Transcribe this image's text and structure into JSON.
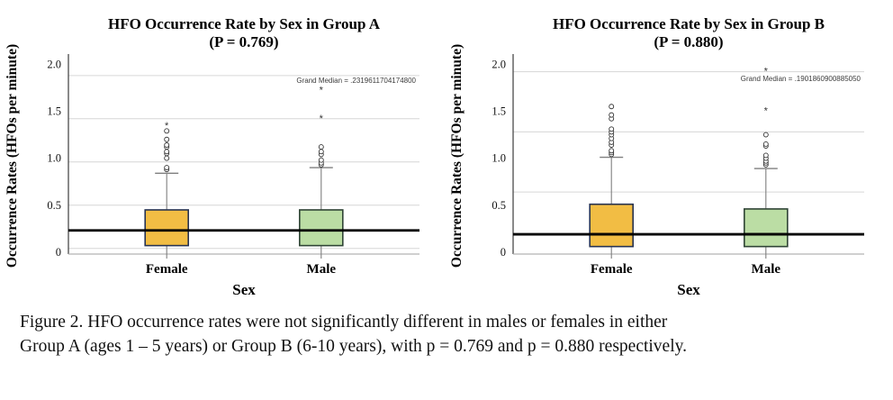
{
  "figure": {
    "caption_line1": "Figure 2. HFO occurrence rates were not significantly different in males or females in either",
    "caption_line2": "Group A (ages 1 – 5 years) or Group B (6-10 years), with p = 0.769 and p = 0.880 respectively."
  },
  "colors": {
    "female_box_fill": "#F2BD44",
    "male_box_fill": "#BBDDA4",
    "female_box_border": "#273352",
    "male_box_border": "#2f4435",
    "gridline": "#d6d6d6",
    "y_axis": "#4a4a4a",
    "x_axis": "#b3b3b3",
    "whisker": "#7f7f7f",
    "outlier": "#333333",
    "grand_median_line": "#000000",
    "annotation_text": "#3d3d3d"
  },
  "chart_data": [
    {
      "type": "box",
      "title": "HFO Occurrence Rate by Sex in Group A",
      "subtitle": "(P = 0.769)",
      "xlabel": "Sex",
      "ylabel": "Occurrence Rates (HFOs per minute)",
      "ylim": [
        -0.02,
        2.07
      ],
      "yticks": [
        0,
        0.5,
        1.0,
        1.5,
        2.0
      ],
      "ytick_labels": [
        "0",
        "0.5",
        "1.0",
        "1.5",
        "2.0"
      ],
      "gridlines": [
        0.04,
        0.5,
        0.96,
        1.42,
        1.88
      ],
      "grand_median": 0.23196117041748,
      "grand_median_label": "Grand Median = .2319611704174800",
      "grand_median_label_y": 1.8,
      "categories": [
        "Female",
        "Male"
      ],
      "boxes": [
        {
          "category": "Female",
          "fill": "#F2BD44",
          "border": "#273352",
          "q1": 0.07,
          "median": 0.23,
          "q3": 0.45,
          "whisker_low": 0.0,
          "whisker_high": 0.84,
          "outliers": [
            0.88,
            0.9,
            1.0,
            1.05,
            1.07,
            1.12,
            1.14,
            1.2,
            1.29
          ],
          "extremes": [
            1.35
          ]
        },
        {
          "category": "Male",
          "fill": "#BBDDA4",
          "border": "#2f4435",
          "q1": 0.07,
          "median": 0.23,
          "q3": 0.45,
          "whisker_low": 0.0,
          "whisker_high": 0.9,
          "outliers": [
            0.93,
            0.95,
            0.98,
            1.04,
            1.07,
            1.12
          ],
          "extremes": [
            1.43,
            1.73
          ]
        }
      ]
    },
    {
      "type": "box",
      "title": "HFO Occurrence Rate by Sex in Group B",
      "subtitle": "(P = 0.880)",
      "xlabel": "Sex",
      "ylabel": "Occurrence Rates (HFOs per minute)",
      "ylim": [
        -0.02,
        2.07
      ],
      "yticks": [
        0,
        0.5,
        1.0,
        1.5,
        2.0
      ],
      "ytick_labels": [
        "0",
        "0.5",
        "1.0",
        "1.5",
        "2.0"
      ],
      "gridlines": [
        0.64,
        1.28,
        1.92
      ],
      "grand_median": 0.190186090088505,
      "grand_median_label": "Grand Median = .1901860900885050",
      "grand_median_label_y": 1.82,
      "categories": [
        "Female",
        "Male"
      ],
      "boxes": [
        {
          "category": "Female",
          "fill": "#F2BD44",
          "border": "#273352",
          "q1": 0.06,
          "median": 0.2,
          "q3": 0.51,
          "whisker_low": 0.0,
          "whisker_high": 1.01,
          "outliers": [
            1.04,
            1.06,
            1.08,
            1.14,
            1.17,
            1.21,
            1.25,
            1.28,
            1.31,
            1.42,
            1.46,
            1.55
          ],
          "extremes": []
        },
        {
          "category": "Male",
          "fill": "#BBDDA4",
          "border": "#2f4435",
          "q1": 0.06,
          "median": 0.2,
          "q3": 0.46,
          "whisker_low": 0.0,
          "whisker_high": 0.89,
          "outliers": [
            0.93,
            0.95,
            0.97,
            1.0,
            1.03,
            1.13,
            1.15,
            1.25
          ],
          "extremes": [
            1.51,
            1.93
          ]
        }
      ]
    }
  ]
}
